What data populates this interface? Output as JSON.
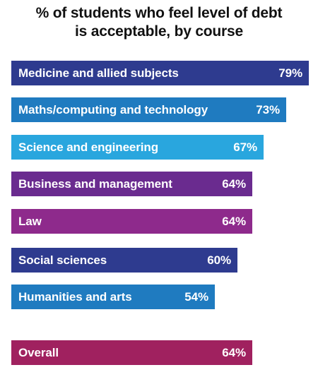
{
  "chart_data": {
    "type": "bar",
    "orientation": "horizontal",
    "title": "% of students who feel level of debt is acceptable, by course",
    "title_lines": [
      "% of students who feel level of debt",
      "is acceptable, by course"
    ],
    "categories": [
      "Medicine and allied subjects",
      "Maths/computing and technology",
      "Science and engineering",
      "Business and management",
      "Law",
      "Social sciences",
      "Humanities and arts",
      "Overall"
    ],
    "values": [
      79,
      73,
      67,
      64,
      64,
      60,
      54,
      64
    ],
    "value_labels": [
      "79%",
      "73%",
      "67%",
      "64%",
      "64%",
      "60%",
      "54%",
      "64%"
    ],
    "colors": [
      "#2e3b8f",
      "#1f7bc0",
      "#29a6de",
      "#6a2b8f",
      "#8e2a8c",
      "#2e3b8f",
      "#1f7bc0",
      "#a0215f"
    ],
    "xlim": [
      0,
      100
    ],
    "grid": false,
    "legend": "none"
  }
}
